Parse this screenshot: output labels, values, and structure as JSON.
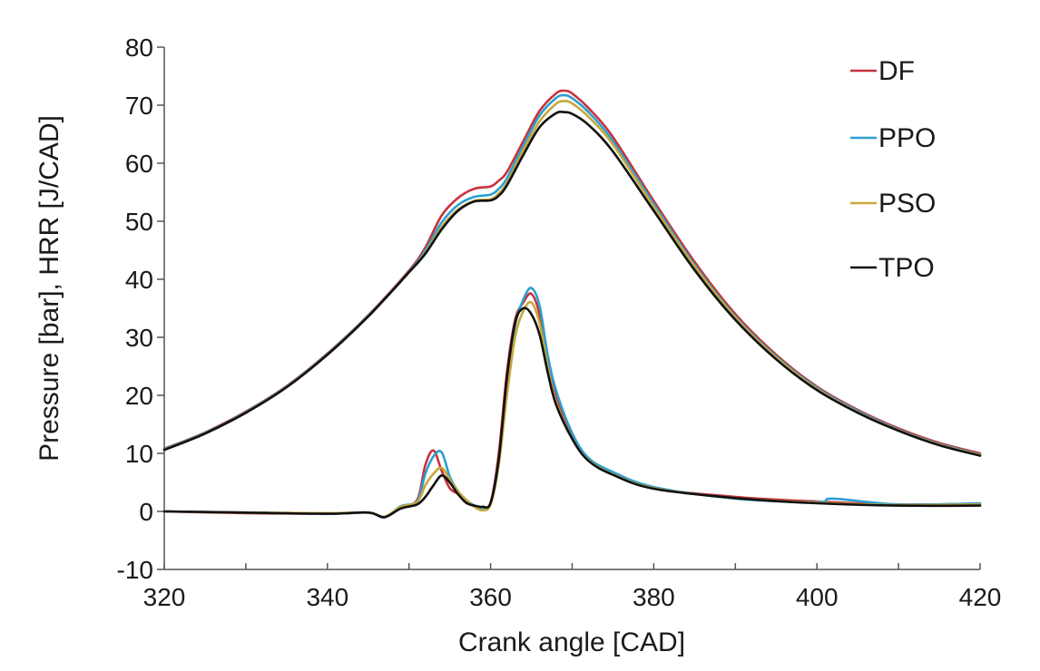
{
  "chart_data": {
    "type": "line",
    "title": "",
    "xlabel": "Crank angle [CAD]",
    "ylabel": "Pressure [bar], HRR [J/CAD]",
    "xlim": [
      320,
      420
    ],
    "ylim": [
      -10,
      80
    ],
    "x_ticks": [
      320,
      340,
      360,
      380,
      400,
      420
    ],
    "x_tick_labels": [
      "320",
      "340",
      "360",
      "380",
      "400",
      "420"
    ],
    "y_ticks": [
      -10,
      0,
      10,
      20,
      30,
      40,
      50,
      60,
      70,
      80
    ],
    "y_tick_labels": [
      "-10",
      "0",
      "10",
      "20",
      "30",
      "40",
      "50",
      "60",
      "70",
      "80"
    ],
    "grid": false,
    "legend_position": "top-right",
    "series": [
      {
        "name": "DF",
        "label": "DF",
        "color": "#c8313a",
        "pressure": {
          "x": [
            320,
            325,
            330,
            335,
            340,
            345,
            350,
            352,
            354,
            356,
            358,
            360,
            361,
            362,
            364,
            366,
            368,
            369,
            370,
            372,
            375,
            380,
            385,
            390,
            395,
            400,
            405,
            410,
            415,
            420
          ],
          "y": [
            10.8,
            13.6,
            17.2,
            21.6,
            27.2,
            33.8,
            41.5,
            45.5,
            51.0,
            54.0,
            55.6,
            56.0,
            57.0,
            58.5,
            63.8,
            69.0,
            72.0,
            72.5,
            72.0,
            69.5,
            64.5,
            53.5,
            43.0,
            34.0,
            27.0,
            21.5,
            17.5,
            14.3,
            11.8,
            10.0
          ]
        },
        "hrr": {
          "x": [
            320,
            330,
            340,
            345,
            347,
            349,
            351,
            352,
            353,
            354,
            355,
            356,
            357,
            358,
            359,
            360,
            361,
            362,
            363,
            364,
            365,
            366,
            367,
            368,
            370,
            372,
            375,
            380,
            390,
            400,
            410,
            420
          ],
          "y": [
            0,
            -0.3,
            -0.4,
            -0.2,
            -1.0,
            0.8,
            2.0,
            8.0,
            10.5,
            7.0,
            4.0,
            3.0,
            1.5,
            1.0,
            0.5,
            1.5,
            10.0,
            24.0,
            33.0,
            36.0,
            37.5,
            34.0,
            26.0,
            20.0,
            13.0,
            9.0,
            6.5,
            4.0,
            2.5,
            1.7,
            1.2,
            1.3
          ]
        }
      },
      {
        "name": "PPO",
        "label": "PPO",
        "color": "#2c9fd0",
        "pressure": {
          "x": [
            320,
            325,
            330,
            335,
            340,
            345,
            350,
            352,
            354,
            356,
            358,
            360,
            361,
            362,
            364,
            366,
            368,
            369,
            370,
            372,
            375,
            380,
            385,
            390,
            395,
            400,
            405,
            410,
            415,
            420
          ],
          "y": [
            10.7,
            13.5,
            17.1,
            21.5,
            27.1,
            33.7,
            41.3,
            45.0,
            49.8,
            52.8,
            54.2,
            54.6,
            55.6,
            57.4,
            63.0,
            68.2,
            71.2,
            71.7,
            71.2,
            68.8,
            63.8,
            53.0,
            42.5,
            33.6,
            26.7,
            21.3,
            17.3,
            14.1,
            11.6,
            9.8
          ]
        },
        "hrr": {
          "x": [
            320,
            330,
            340,
            345,
            347,
            349,
            351,
            352,
            353,
            354,
            355,
            356,
            357,
            358,
            359,
            360,
            361,
            362,
            363,
            364,
            365,
            366,
            367,
            368,
            370,
            372,
            375,
            380,
            390,
            400,
            402,
            410,
            420
          ],
          "y": [
            0,
            -0.2,
            -0.4,
            -0.2,
            -1.0,
            0.9,
            1.8,
            6.5,
            9.5,
            10.2,
            6.0,
            3.5,
            2.0,
            1.0,
            0.5,
            1.4,
            9.0,
            22.0,
            32.0,
            36.5,
            38.5,
            35.5,
            27.0,
            21.0,
            13.5,
            9.2,
            6.8,
            4.2,
            2.2,
            1.6,
            2.2,
            1.2,
            1.4
          ]
        }
      },
      {
        "name": "PSO",
        "label": "PSO",
        "color": "#c7a83a",
        "pressure": {
          "x": [
            320,
            325,
            330,
            335,
            340,
            345,
            350,
            352,
            354,
            356,
            358,
            360,
            361,
            362,
            364,
            366,
            368,
            369,
            370,
            372,
            375,
            380,
            385,
            390,
            395,
            400,
            405,
            410,
            415,
            420
          ],
          "y": [
            10.6,
            13.4,
            17.0,
            21.4,
            27.0,
            33.6,
            41.2,
            44.6,
            49.0,
            52.0,
            53.5,
            53.8,
            54.8,
            56.6,
            62.2,
            67.2,
            70.2,
            70.7,
            70.3,
            68.0,
            63.2,
            52.5,
            42.2,
            33.4,
            26.5,
            21.1,
            17.1,
            14.0,
            11.5,
            9.7
          ]
        },
        "hrr": {
          "x": [
            320,
            330,
            340,
            345,
            347,
            349,
            351,
            352,
            353,
            354,
            355,
            356,
            357,
            358,
            359,
            360,
            361,
            362,
            363,
            364,
            365,
            366,
            367,
            368,
            370,
            372,
            375,
            380,
            390,
            400,
            410,
            420
          ],
          "y": [
            0,
            -0.2,
            -0.3,
            -0.2,
            -0.9,
            0.8,
            1.6,
            4.5,
            6.5,
            7.5,
            5.5,
            3.5,
            2.0,
            0.8,
            0.2,
            1.2,
            8.0,
            20.0,
            30.0,
            34.5,
            36.0,
            32.5,
            25.0,
            19.0,
            12.5,
            8.8,
            6.4,
            4.0,
            2.3,
            1.5,
            1.1,
            1.2
          ]
        }
      },
      {
        "name": "TPO",
        "label": "TPO",
        "color": "#111111",
        "pressure": {
          "x": [
            320,
            325,
            330,
            335,
            340,
            345,
            350,
            352,
            354,
            356,
            358,
            360,
            361,
            362,
            364,
            366,
            368,
            369,
            370,
            372,
            375,
            380,
            385,
            390,
            395,
            400,
            405,
            410,
            415,
            420
          ],
          "y": [
            10.6,
            13.4,
            17.0,
            21.4,
            27.0,
            33.6,
            41.2,
            44.4,
            48.6,
            51.8,
            53.4,
            53.6,
            54.4,
            56.2,
            61.4,
            66.2,
            68.6,
            68.8,
            68.5,
            66.6,
            62.0,
            51.8,
            41.6,
            33.0,
            26.2,
            20.9,
            17.0,
            13.9,
            11.4,
            9.6
          ]
        },
        "hrr": {
          "x": [
            320,
            330,
            340,
            345,
            347,
            349,
            351,
            352,
            353,
            354,
            355,
            356,
            357,
            358,
            359,
            360,
            361,
            362,
            363,
            364,
            365,
            366,
            367,
            368,
            370,
            372,
            375,
            380,
            390,
            400,
            410,
            420
          ],
          "y": [
            0,
            -0.2,
            -0.4,
            -0.2,
            -1.0,
            0.5,
            1.2,
            2.5,
            4.5,
            6.2,
            5.0,
            3.0,
            1.5,
            1.0,
            0.8,
            1.5,
            9.0,
            23.0,
            32.5,
            35.0,
            34.0,
            30.5,
            24.0,
            18.5,
            12.5,
            8.7,
            6.3,
            3.9,
            2.3,
            1.4,
            1.0,
            1.0
          ]
        }
      }
    ]
  }
}
